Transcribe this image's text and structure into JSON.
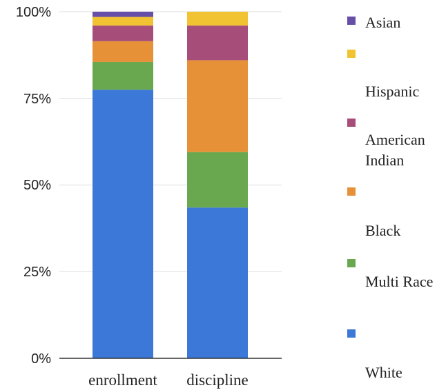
{
  "chart_data": {
    "type": "bar",
    "stacked": true,
    "categories": [
      "enrollment",
      "discipline"
    ],
    "yticks": [
      "0%",
      "25%",
      "50%",
      "75%",
      "100%"
    ],
    "ylim": [
      0,
      100
    ],
    "grid": true,
    "legend_position": "right",
    "series": [
      {
        "name": "White",
        "color": "#3b78d8",
        "values": [
          77.5,
          43.5
        ]
      },
      {
        "name": "Multi Race",
        "color": "#6aa84f",
        "values": [
          8,
          16
        ]
      },
      {
        "name": "Black",
        "color": "#e69138",
        "values": [
          6,
          26.5
        ]
      },
      {
        "name": "American Indian",
        "color": "#a64d79",
        "values": [
          4.5,
          10
        ]
      },
      {
        "name": "Hispanic",
        "color": "#f1c232",
        "values": [
          2.5,
          4
        ]
      },
      {
        "name": "Asian",
        "color": "#674ea7",
        "values": [
          1.5,
          0
        ]
      }
    ]
  }
}
